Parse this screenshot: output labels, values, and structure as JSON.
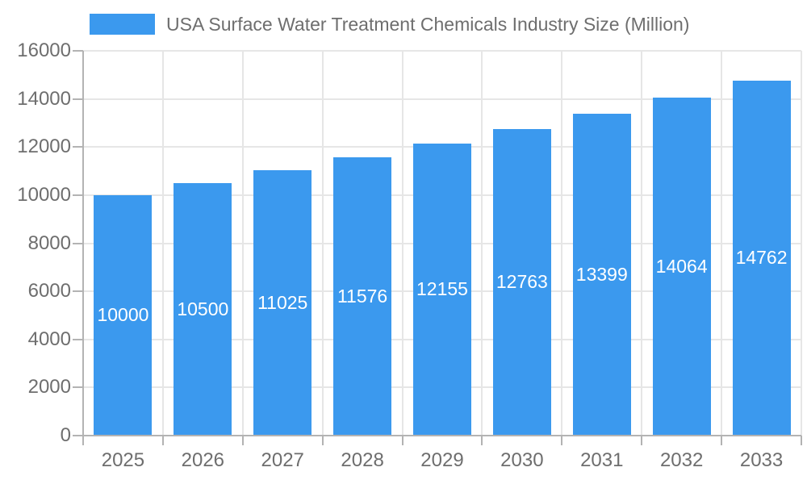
{
  "chart_data": {
    "type": "bar",
    "title": "USA Surface Water Treatment Chemicals Industry Size (Million)",
    "series_name": "USA Surface Water Treatment Chemicals Industry Size (Million)",
    "categories": [
      "2025",
      "2026",
      "2027",
      "2028",
      "2029",
      "2030",
      "2031",
      "2032",
      "2033"
    ],
    "values": [
      10000,
      10500,
      11025,
      11576,
      12155,
      12763,
      13399,
      14064,
      14762
    ],
    "data_labels": [
      "10000",
      "10500",
      "11025",
      "11576",
      "12155",
      "12763",
      "13399",
      "14064",
      "14762"
    ],
    "xlabel": "",
    "ylabel": "",
    "ylim": [
      0,
      16000
    ],
    "yticks": [
      0,
      2000,
      4000,
      6000,
      8000,
      10000,
      12000,
      14000,
      16000
    ],
    "ytick_labels": [
      "0",
      "2000",
      "4000",
      "6000",
      "8000",
      "10000",
      "12000",
      "14000",
      "16000"
    ],
    "grid": true,
    "legend_position": "top",
    "colors": {
      "bar": "#3B99EE",
      "annotation_text": "#FFFFFF",
      "axis_line": "#B3B3B3",
      "gridline": "#E6E6E6",
      "tick_text": "#6E6E6E",
      "background": "#FFFFFF"
    }
  }
}
